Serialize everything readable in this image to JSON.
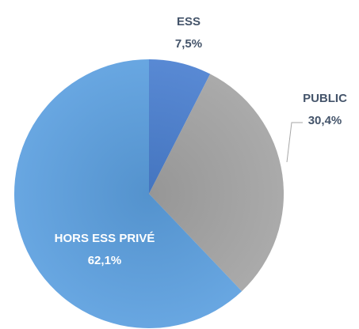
{
  "chart_data": {
    "type": "pie",
    "categories": [
      "ESS",
      "PUBLIC",
      "HORS ESS PRIVÉ"
    ],
    "values": [
      7.5,
      30.4,
      62.1
    ],
    "value_labels": [
      "7,5%",
      "30,4%",
      "62,1%"
    ],
    "colors": [
      "#4a7fd0",
      "#a3a3a3",
      "#5b9fdf"
    ]
  }
}
